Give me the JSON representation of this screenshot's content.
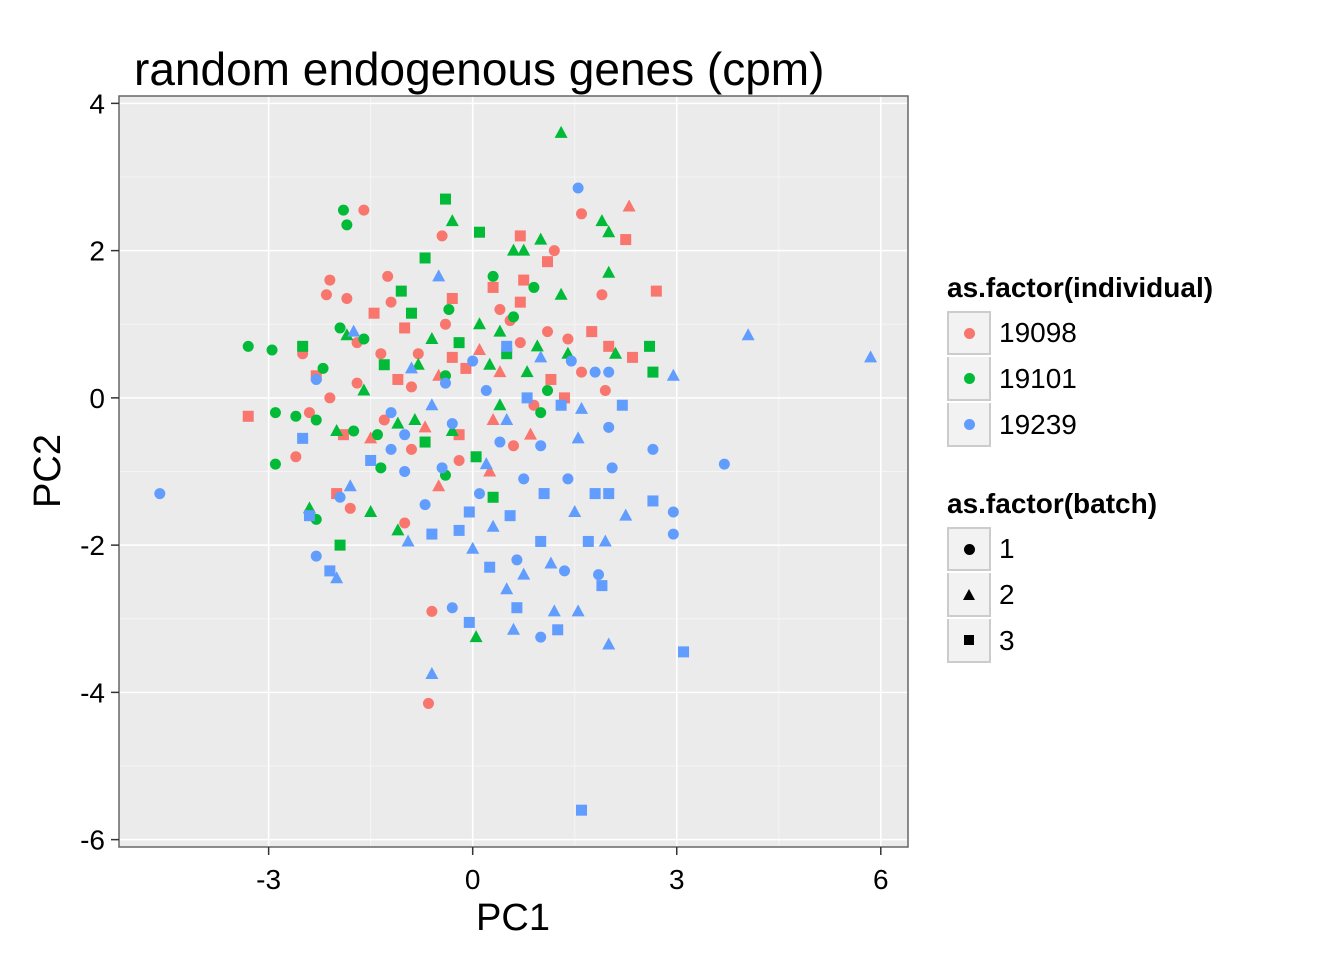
{
  "chart_data": {
    "type": "scatter",
    "title": "random endogenous genes (cpm)",
    "xlabel": "PC1",
    "ylabel": "PC2",
    "xlim": [
      -5.2,
      6.4
    ],
    "ylim": [
      -6.1,
      4.1
    ],
    "xticks": [
      -3,
      0,
      3,
      6
    ],
    "xtick_labels": [
      "-3",
      "0",
      "3",
      "6"
    ],
    "yticks": [
      -6,
      -4,
      -2,
      0,
      2,
      4
    ],
    "ytick_labels": [
      "-6",
      "-4",
      "-2",
      "0",
      "2",
      "4"
    ],
    "grid": true,
    "background": "#ebebeb",
    "legend_position": "right",
    "color_legend": {
      "title": "as.factor(individual)",
      "entries": [
        {
          "label": "19098",
          "color": "#F8766D"
        },
        {
          "label": "19101",
          "color": "#00BA38"
        },
        {
          "label": "19239",
          "color": "#619CFF"
        }
      ]
    },
    "shape_legend": {
      "title": "as.factor(batch)",
      "entries": [
        {
          "label": "1",
          "shape": "circle"
        },
        {
          "label": "2",
          "shape": "triangle"
        },
        {
          "label": "3",
          "shape": "square"
        }
      ]
    },
    "series": [
      {
        "name": "19098",
        "color": "#F8766D",
        "points": [
          [
            -1.6,
            2.55,
            1
          ],
          [
            2.3,
            2.6,
            2
          ],
          [
            1.6,
            2.5,
            1
          ],
          [
            2.25,
            2.15,
            3
          ],
          [
            0.7,
            2.2,
            3
          ],
          [
            1.2,
            2.0,
            1
          ],
          [
            -0.45,
            2.2,
            1
          ],
          [
            1.1,
            1.85,
            3
          ],
          [
            -2.1,
            1.6,
            1
          ],
          [
            -1.25,
            1.65,
            1
          ],
          [
            -2.15,
            1.4,
            1
          ],
          [
            -1.85,
            1.35,
            1
          ],
          [
            -1.2,
            1.3,
            1
          ],
          [
            2.7,
            1.45,
            3
          ],
          [
            1.9,
            1.4,
            1
          ],
          [
            0.75,
            1.6,
            3
          ],
          [
            0.4,
            1.2,
            1
          ],
          [
            0.7,
            1.3,
            3
          ],
          [
            -1.45,
            1.15,
            3
          ],
          [
            -1.0,
            0.95,
            3
          ],
          [
            -0.4,
            1.0,
            1
          ],
          [
            0.55,
            1.05,
            1
          ],
          [
            1.75,
            0.9,
            3
          ],
          [
            1.1,
            0.9,
            1
          ],
          [
            -2.5,
            0.6,
            1
          ],
          [
            -1.7,
            0.75,
            1
          ],
          [
            -1.35,
            0.6,
            1
          ],
          [
            -0.8,
            0.6,
            1
          ],
          [
            -0.3,
            0.55,
            3
          ],
          [
            0.1,
            0.65,
            2
          ],
          [
            0.7,
            0.75,
            1
          ],
          [
            1.4,
            0.8,
            1
          ],
          [
            2.0,
            0.7,
            3
          ],
          [
            -2.3,
            0.3,
            3
          ],
          [
            -2.1,
            0.0,
            1
          ],
          [
            -1.7,
            0.2,
            1
          ],
          [
            -1.1,
            0.25,
            3
          ],
          [
            -0.5,
            0.3,
            2
          ],
          [
            -0.1,
            0.4,
            3
          ],
          [
            0.4,
            0.35,
            2
          ],
          [
            1.15,
            0.25,
            3
          ],
          [
            1.6,
            0.35,
            1
          ],
          [
            -3.3,
            -0.25,
            3
          ],
          [
            -2.4,
            -0.2,
            1
          ],
          [
            -1.9,
            -0.5,
            3
          ],
          [
            -1.3,
            -0.3,
            1
          ],
          [
            -0.7,
            -0.4,
            2
          ],
          [
            -0.2,
            -0.5,
            3
          ],
          [
            0.3,
            -0.3,
            2
          ],
          [
            0.9,
            -0.1,
            1
          ],
          [
            1.35,
            0.0,
            3
          ],
          [
            -2.6,
            -0.8,
            1
          ],
          [
            -1.5,
            -0.55,
            2
          ],
          [
            -0.9,
            -0.7,
            1
          ],
          [
            -0.2,
            -0.85,
            1
          ],
          [
            0.6,
            -0.65,
            1
          ],
          [
            -1.8,
            -1.5,
            1
          ],
          [
            -1.0,
            -1.7,
            1
          ],
          [
            -0.5,
            -1.2,
            2
          ],
          [
            0.25,
            -1.0,
            2
          ],
          [
            -0.6,
            -2.9,
            1
          ],
          [
            -0.65,
            -4.15,
            1
          ],
          [
            -0.3,
            1.35,
            3
          ],
          [
            0.3,
            1.5,
            3
          ],
          [
            -0.9,
            0.15,
            1
          ],
          [
            1.95,
            0.1,
            1
          ],
          [
            2.35,
            0.55,
            3
          ],
          [
            -2.0,
            -1.3,
            3
          ],
          [
            0.85,
            -0.5,
            2
          ]
        ]
      },
      {
        "name": "19101",
        "color": "#00BA38",
        "points": [
          [
            1.3,
            3.6,
            2
          ],
          [
            -0.4,
            2.7,
            3
          ],
          [
            -0.3,
            2.4,
            2
          ],
          [
            1.9,
            2.4,
            2
          ],
          [
            -1.9,
            2.55,
            1
          ],
          [
            -1.85,
            2.35,
            1
          ],
          [
            0.1,
            2.25,
            3
          ],
          [
            0.6,
            2.0,
            2
          ],
          [
            1.0,
            2.15,
            2
          ],
          [
            2.0,
            2.25,
            2
          ],
          [
            -0.7,
            1.9,
            3
          ],
          [
            0.75,
            2.0,
            2
          ],
          [
            2.0,
            1.7,
            2
          ],
          [
            -1.05,
            1.45,
            3
          ],
          [
            0.3,
            1.65,
            1
          ],
          [
            0.9,
            1.5,
            1
          ],
          [
            1.3,
            1.4,
            2
          ],
          [
            -0.9,
            1.15,
            3
          ],
          [
            0.1,
            1.0,
            2
          ],
          [
            0.6,
            1.1,
            1
          ],
          [
            -1.95,
            0.95,
            1
          ],
          [
            -1.85,
            0.85,
            2
          ],
          [
            -3.3,
            0.7,
            1
          ],
          [
            -2.95,
            0.65,
            1
          ],
          [
            -2.5,
            0.7,
            3
          ],
          [
            -1.6,
            0.8,
            1
          ],
          [
            -0.6,
            0.8,
            2
          ],
          [
            -0.2,
            0.75,
            3
          ],
          [
            0.5,
            0.6,
            3
          ],
          [
            0.95,
            0.7,
            2
          ],
          [
            1.4,
            0.6,
            2
          ],
          [
            2.6,
            0.7,
            3
          ],
          [
            2.1,
            0.6,
            2
          ],
          [
            -2.2,
            0.4,
            1
          ],
          [
            -1.3,
            0.45,
            3
          ],
          [
            -0.8,
            0.45,
            2
          ],
          [
            -0.4,
            0.3,
            1
          ],
          [
            0.8,
            0.35,
            2
          ],
          [
            2.65,
            0.35,
            3
          ],
          [
            -2.9,
            -0.2,
            1
          ],
          [
            -2.6,
            -0.25,
            1
          ],
          [
            -1.75,
            -0.45,
            1
          ],
          [
            -1.1,
            -0.35,
            2
          ],
          [
            -0.3,
            -0.45,
            2
          ],
          [
            0.4,
            -0.1,
            2
          ],
          [
            1.0,
            -0.2,
            1
          ],
          [
            -2.3,
            -0.3,
            1
          ],
          [
            -2.9,
            -0.9,
            1
          ],
          [
            -2.0,
            -0.45,
            2
          ],
          [
            -1.4,
            -0.5,
            1
          ],
          [
            -0.7,
            -0.6,
            3
          ],
          [
            0.05,
            -0.8,
            3
          ],
          [
            -1.35,
            -0.95,
            1
          ],
          [
            -0.4,
            -1.05,
            1
          ],
          [
            -2.4,
            -1.5,
            2
          ],
          [
            -2.3,
            -1.65,
            1
          ],
          [
            -1.5,
            -1.55,
            2
          ],
          [
            -1.1,
            -1.8,
            2
          ],
          [
            -1.95,
            -2.0,
            3
          ],
          [
            0.05,
            -3.25,
            2
          ],
          [
            0.4,
            0.9,
            2
          ],
          [
            -0.35,
            1.2,
            1
          ],
          [
            1.1,
            0.1,
            1
          ],
          [
            -1.6,
            0.1,
            2
          ],
          [
            0.25,
            0.45,
            2
          ],
          [
            -0.85,
            -0.3,
            2
          ],
          [
            0.3,
            -1.35,
            3
          ]
        ]
      },
      {
        "name": "19239",
        "color": "#619CFF",
        "points": [
          [
            1.55,
            2.85,
            1
          ],
          [
            -0.5,
            1.65,
            2
          ],
          [
            4.05,
            0.85,
            2
          ],
          [
            5.85,
            0.55,
            2
          ],
          [
            2.95,
            0.3,
            2
          ],
          [
            1.45,
            0.5,
            1
          ],
          [
            -1.75,
            0.9,
            2
          ],
          [
            -2.3,
            0.25,
            1
          ],
          [
            -0.9,
            0.4,
            2
          ],
          [
            -0.4,
            0.2,
            1
          ],
          [
            0.0,
            0.5,
            1
          ],
          [
            0.5,
            0.7,
            3
          ],
          [
            1.0,
            0.55,
            2
          ],
          [
            1.8,
            0.35,
            1
          ],
          [
            2.0,
            0.35,
            1
          ],
          [
            -1.2,
            -0.2,
            1
          ],
          [
            -0.6,
            -0.1,
            2
          ],
          [
            0.2,
            0.1,
            1
          ],
          [
            0.8,
            0.0,
            3
          ],
          [
            1.3,
            -0.1,
            3
          ],
          [
            2.2,
            -0.1,
            3
          ],
          [
            -2.5,
            -0.55,
            3
          ],
          [
            -1.0,
            -0.5,
            1
          ],
          [
            -0.3,
            -0.35,
            1
          ],
          [
            0.4,
            -0.6,
            1
          ],
          [
            1.0,
            -0.65,
            1
          ],
          [
            1.55,
            -0.55,
            2
          ],
          [
            2.0,
            -0.4,
            1
          ],
          [
            2.65,
            -0.7,
            1
          ],
          [
            3.7,
            -0.9,
            1
          ],
          [
            -1.8,
            -1.2,
            2
          ],
          [
            -1.0,
            -1.0,
            1
          ],
          [
            -0.45,
            -0.95,
            1
          ],
          [
            0.1,
            -1.3,
            1
          ],
          [
            0.75,
            -1.1,
            1
          ],
          [
            1.4,
            -1.1,
            1
          ],
          [
            1.8,
            -1.3,
            3
          ],
          [
            2.05,
            -0.95,
            1
          ],
          [
            -4.6,
            -1.3,
            1
          ],
          [
            -1.95,
            -1.35,
            1
          ],
          [
            -0.7,
            -1.45,
            1
          ],
          [
            -0.05,
            -1.55,
            3
          ],
          [
            0.55,
            -1.6,
            3
          ],
          [
            1.05,
            -1.3,
            3
          ],
          [
            1.5,
            -1.55,
            2
          ],
          [
            2.0,
            -1.3,
            3
          ],
          [
            2.65,
            -1.4,
            3
          ],
          [
            -2.4,
            -1.6,
            3
          ],
          [
            -0.6,
            -1.85,
            3
          ],
          [
            0.3,
            -1.75,
            2
          ],
          [
            1.0,
            -1.95,
            3
          ],
          [
            1.7,
            -1.95,
            3
          ],
          [
            2.25,
            -1.6,
            2
          ],
          [
            2.95,
            -1.55,
            1
          ],
          [
            -2.3,
            -2.15,
            1
          ],
          [
            -0.95,
            -1.95,
            2
          ],
          [
            0.0,
            -2.05,
            2
          ],
          [
            0.65,
            -2.2,
            1
          ],
          [
            1.15,
            -2.25,
            2
          ],
          [
            1.95,
            -1.95,
            2
          ],
          [
            2.95,
            -1.85,
            1
          ],
          [
            -2.1,
            -2.35,
            3
          ],
          [
            0.25,
            -2.3,
            3
          ],
          [
            0.75,
            -2.4,
            2
          ],
          [
            1.35,
            -2.35,
            1
          ],
          [
            -2.0,
            -2.45,
            2
          ],
          [
            0.5,
            -2.6,
            2
          ],
          [
            1.85,
            -2.4,
            1
          ],
          [
            1.9,
            -2.55,
            3
          ],
          [
            -0.3,
            -2.85,
            1
          ],
          [
            0.65,
            -2.85,
            3
          ],
          [
            1.2,
            -2.9,
            2
          ],
          [
            1.55,
            -2.9,
            2
          ],
          [
            -0.05,
            -3.05,
            3
          ],
          [
            0.6,
            -3.15,
            2
          ],
          [
            1.0,
            -3.25,
            1
          ],
          [
            1.25,
            -3.15,
            3
          ],
          [
            2.0,
            -3.35,
            2
          ],
          [
            3.1,
            -3.45,
            3
          ],
          [
            -0.6,
            -3.75,
            2
          ],
          [
            1.6,
            -5.6,
            3
          ],
          [
            -1.2,
            -0.7,
            1
          ],
          [
            0.5,
            -0.3,
            2
          ],
          [
            1.6,
            -0.15,
            2
          ],
          [
            0.2,
            -0.9,
            2
          ],
          [
            -0.2,
            -1.8,
            3
          ],
          [
            -1.5,
            -0.85,
            3
          ]
        ]
      }
    ]
  }
}
